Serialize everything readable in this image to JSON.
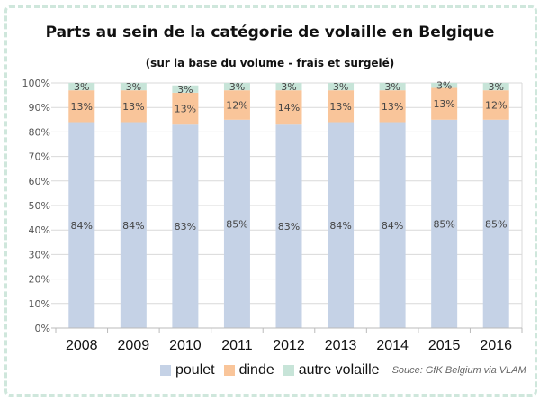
{
  "chart_data": {
    "type": "bar",
    "stacked": true,
    "title": "Parts au sein de la catégorie de volaille en Belgique",
    "subtitle": "(sur la base du volume - frais et surgelé)",
    "categories": [
      "2008",
      "2009",
      "2010",
      "2011",
      "2012",
      "2013",
      "2014",
      "2015",
      "2016"
    ],
    "series": [
      {
        "name": "poulet",
        "color": "#c5d2e6",
        "values": [
          84,
          84,
          83,
          85,
          83,
          84,
          84,
          85,
          85
        ]
      },
      {
        "name": "dinde",
        "color": "#f9c59a",
        "values": [
          13,
          13,
          13,
          12,
          14,
          13,
          13,
          13,
          12
        ]
      },
      {
        "name": "autre volaille",
        "color": "#c7e4d8",
        "values": [
          3,
          3,
          3,
          3,
          3,
          3,
          3,
          3,
          3
        ]
      }
    ],
    "yticks": [
      "0%",
      "10%",
      "20%",
      "30%",
      "40%",
      "50%",
      "60%",
      "70%",
      "80%",
      "90%",
      "100%"
    ],
    "ylim": [
      0,
      100
    ],
    "grid": true,
    "legend": "bottom",
    "source": "Souce: GfK Belgium via VLAM"
  }
}
